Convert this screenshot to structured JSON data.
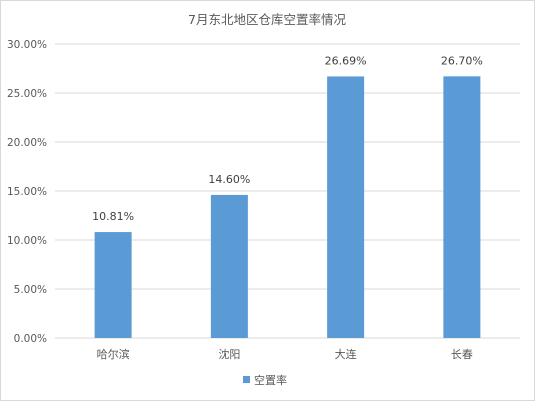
{
  "chart_data": {
    "type": "bar",
    "title": "7月东北地区仓库空置率情况",
    "categories": [
      "哈尔滨",
      "沈阳",
      "大连",
      "长春"
    ],
    "series": [
      {
        "name": "空置率",
        "values": [
          10.81,
          14.6,
          26.69,
          26.7
        ],
        "labels": [
          "10.81%",
          "14.60%",
          "26.69%",
          "26.70%"
        ]
      }
    ],
    "ylim": [
      0,
      30
    ],
    "yticks": [
      0,
      5,
      10,
      15,
      20,
      25,
      30
    ],
    "ytick_labels": [
      "0.00%",
      "5.00%",
      "10.00%",
      "15.00%",
      "20.00%",
      "25.00%",
      "30.00%"
    ],
    "grid": true,
    "legend_position": "bottom",
    "colors": {
      "bar": "#5b9bd5",
      "grid": "#d9d9d9",
      "text": "#595959"
    }
  }
}
